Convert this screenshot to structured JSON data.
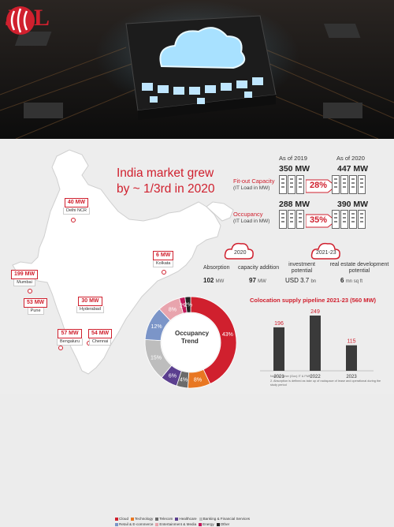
{
  "brand": {
    "name": "JLL",
    "color": "#d0202e"
  },
  "headline": "India market grew by ~ 1/3rd in 2020",
  "cities": [
    {
      "mw": "40 MW",
      "name": "Delhi NCR"
    },
    {
      "mw": "6 MW",
      "name": "Kolkata"
    },
    {
      "mw": "199 MW",
      "name": "Mumbai"
    },
    {
      "mw": "53 MW",
      "name": "Pune"
    },
    {
      "mw": "30 MW",
      "name": "Hyderabad"
    },
    {
      "mw": "57 MW",
      "name": "Bengaluru"
    },
    {
      "mw": "54 MW",
      "name": "Chennai"
    }
  ],
  "capacity": {
    "year_a": "As of 2019",
    "year_b": "As of 2020",
    "fitout_label": "Fit-out Capacity",
    "fitout_sub": "(IT Load in MW)",
    "fitout_2019": "350 MW",
    "fitout_2020": "447 MW",
    "fitout_growth": "28%",
    "occ_label": "Occupancy",
    "occ_sub": "(IT Load in MW)",
    "occ_2019": "288 MW",
    "occ_2020": "390 MW",
    "occ_growth": "35%"
  },
  "stats": {
    "year_2020": "2020",
    "year_2123": "2021-23",
    "absorption_label": "Absorption",
    "absorption_value": "102",
    "absorption_unit": "MW",
    "capacity_label": "capacity addition",
    "capacity_value": "97",
    "capacity_unit": "MW",
    "investment_label": "investment potential",
    "investment_value": "USD 3.7",
    "investment_unit": "bn",
    "realestate_label": "real estate development potential",
    "realestate_value": "6",
    "realestate_unit": "mn sq ft"
  },
  "occupancy": {
    "title": "Occupancy",
    "subtitle": "Trend",
    "slices": [
      {
        "name": "Cloud",
        "value": 43,
        "label": "43%",
        "color": "#d0202e"
      },
      {
        "name": "Technology",
        "value": 8,
        "label": "8%",
        "color": "#e87722"
      },
      {
        "name": "Telecom",
        "value": 4,
        "label": "4%",
        "color": "#6b6b6b"
      },
      {
        "name": "Healthcare",
        "value": 6,
        "label": "6%",
        "color": "#5b3f8f"
      },
      {
        "name": "Banking & Financial Services",
        "value": 15,
        "label": "15%",
        "color": "#bdbdbd"
      },
      {
        "name": "Retail & E-commerce",
        "value": 12,
        "label": "12%",
        "color": "#7b95c8"
      },
      {
        "name": "Entertainment & Media",
        "value": 8,
        "label": "8%",
        "color": "#e8a4ad"
      },
      {
        "name": "Energy",
        "value": 2,
        "label": "2%",
        "color": "#c2185b"
      },
      {
        "name": "Other",
        "value": 2,
        "label": "2%",
        "color": "#222222"
      }
    ]
  },
  "chart_data": {
    "type": "bar",
    "title": "Colocation supply pipeline 2021-23 (560 MW)",
    "categories": [
      "2021",
      "2022",
      "2023"
    ],
    "values": [
      196,
      249,
      115
    ],
    "color": "#3a3a3a"
  },
  "notes": {
    "line1": "Note: 1. Other (Gov) IT & FMR",
    "line2": "2. Absorption is defined as take up of rackspace of lease and operational during the study period"
  }
}
